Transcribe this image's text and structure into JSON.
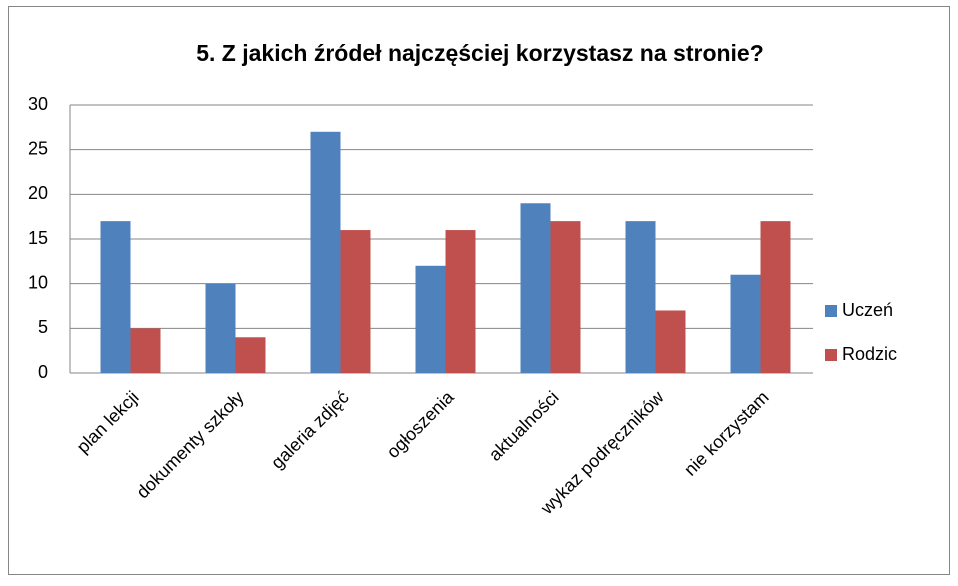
{
  "chart_data": {
    "type": "bar",
    "title": "5. Z jakich źródeł najczęściej korzystasz na stronie?",
    "categories": [
      "plan lekcji",
      "dokumenty szkoły",
      "galeria zdjęć",
      "ogłoszenia",
      "aktualności",
      "wykaz podręczników",
      "nie korzystam"
    ],
    "series": [
      {
        "name": "Uczeń",
        "color": "#4f81bd",
        "values": [
          17,
          10,
          27,
          12,
          19,
          17,
          11
        ]
      },
      {
        "name": "Rodzic",
        "color": "#c0504d",
        "values": [
          5,
          4,
          16,
          16,
          17,
          7,
          17
        ]
      }
    ],
    "ylim": [
      0,
      30
    ],
    "yticks": [
      0,
      5,
      10,
      15,
      20,
      25,
      30
    ],
    "grid": true,
    "legend": "right"
  }
}
